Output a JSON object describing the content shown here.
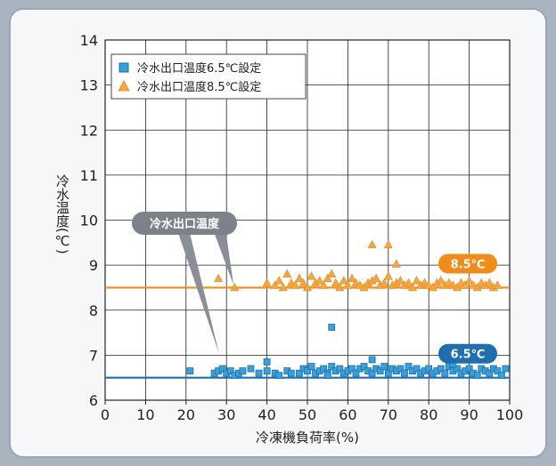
{
  "chart_data": {
    "type": "scatter",
    "xlabel": "冷凍機負荷率(%)",
    "ylabel": "冷水温度(℃)",
    "xlim": [
      0,
      100
    ],
    "ylim": [
      6,
      14
    ],
    "xticks": [
      "0",
      "10",
      "20",
      "30",
      "40",
      "50",
      "60",
      "70",
      "80",
      "90",
      "100"
    ],
    "yticks": [
      "6",
      "7",
      "8",
      "9",
      "10",
      "11",
      "12",
      "13",
      "14"
    ],
    "grid": true,
    "legend_position": "top-left",
    "callout": "冷水出口温度",
    "series": [
      {
        "name": "冷水出口温度6.5℃設定",
        "marker": "square",
        "color": "#3aa0dc",
        "setpoint": 6.5,
        "setpoint_label": "6.5℃",
        "setpoint_color": "#1f6fb0",
        "x": [
          21,
          27,
          28,
          29,
          30,
          31,
          32,
          33,
          34,
          36,
          38,
          40,
          40,
          42,
          43,
          45,
          46,
          48,
          49,
          50,
          51,
          52,
          53,
          54,
          55,
          56,
          56,
          57,
          58,
          59,
          60,
          61,
          62,
          63,
          64,
          65,
          66,
          67,
          68,
          69,
          70,
          71,
          72,
          73,
          74,
          75,
          76,
          77,
          78,
          79,
          80,
          81,
          82,
          83,
          84,
          85,
          86,
          87,
          88,
          89,
          90,
          91,
          92,
          93,
          94,
          95,
          96,
          97,
          98,
          99,
          55,
          66,
          86
        ],
        "y": [
          6.65,
          6.6,
          6.65,
          6.7,
          6.6,
          6.65,
          6.55,
          6.6,
          6.65,
          6.7,
          6.6,
          6.85,
          6.65,
          6.6,
          6.55,
          6.65,
          6.6,
          6.6,
          6.7,
          6.65,
          6.75,
          6.6,
          6.65,
          6.7,
          6.6,
          6.75,
          7.62,
          6.65,
          6.7,
          6.6,
          6.65,
          6.7,
          6.6,
          6.7,
          6.75,
          6.65,
          6.6,
          6.7,
          6.65,
          6.75,
          6.6,
          6.7,
          6.65,
          6.7,
          6.6,
          6.75,
          6.65,
          6.7,
          6.6,
          6.65,
          6.7,
          6.6,
          6.65,
          6.7,
          6.6,
          6.75,
          6.65,
          6.7,
          6.6,
          6.65,
          6.7,
          6.6,
          6.55,
          6.7,
          6.65,
          6.6,
          6.7,
          6.65,
          6.55,
          6.7,
          6.55,
          6.9,
          6.8
        ]
      },
      {
        "name": "冷水出口温度8.5℃設定",
        "marker": "triangle",
        "color": "#f5a640",
        "setpoint": 8.5,
        "setpoint_label": "8.5℃",
        "setpoint_color": "#f08c1a",
        "x": [
          28,
          32,
          40,
          42,
          43,
          44,
          45,
          46,
          47,
          48,
          49,
          50,
          51,
          52,
          53,
          54,
          55,
          56,
          57,
          58,
          59,
          60,
          61,
          62,
          63,
          64,
          65,
          66,
          67,
          68,
          69,
          70,
          71,
          72,
          73,
          74,
          75,
          76,
          77,
          78,
          79,
          80,
          81,
          82,
          83,
          84,
          85,
          86,
          87,
          88,
          89,
          90,
          91,
          92,
          93,
          94,
          95,
          96,
          97,
          66,
          70,
          72
        ],
        "y": [
          8.7,
          8.5,
          8.6,
          8.55,
          8.65,
          8.5,
          8.8,
          8.6,
          8.55,
          8.7,
          8.6,
          8.5,
          8.75,
          8.6,
          8.65,
          8.55,
          8.7,
          8.8,
          8.6,
          8.5,
          8.65,
          8.55,
          8.7,
          8.6,
          8.55,
          8.5,
          8.6,
          8.65,
          8.7,
          8.55,
          8.6,
          8.75,
          8.55,
          8.6,
          8.65,
          8.55,
          8.6,
          8.5,
          8.65,
          8.55,
          8.6,
          8.55,
          8.5,
          8.6,
          8.65,
          8.55,
          8.6,
          8.55,
          8.5,
          8.6,
          8.55,
          8.65,
          8.55,
          8.5,
          8.6,
          8.55,
          8.6,
          8.5,
          8.55,
          9.45,
          9.45,
          9.02
        ]
      }
    ]
  }
}
